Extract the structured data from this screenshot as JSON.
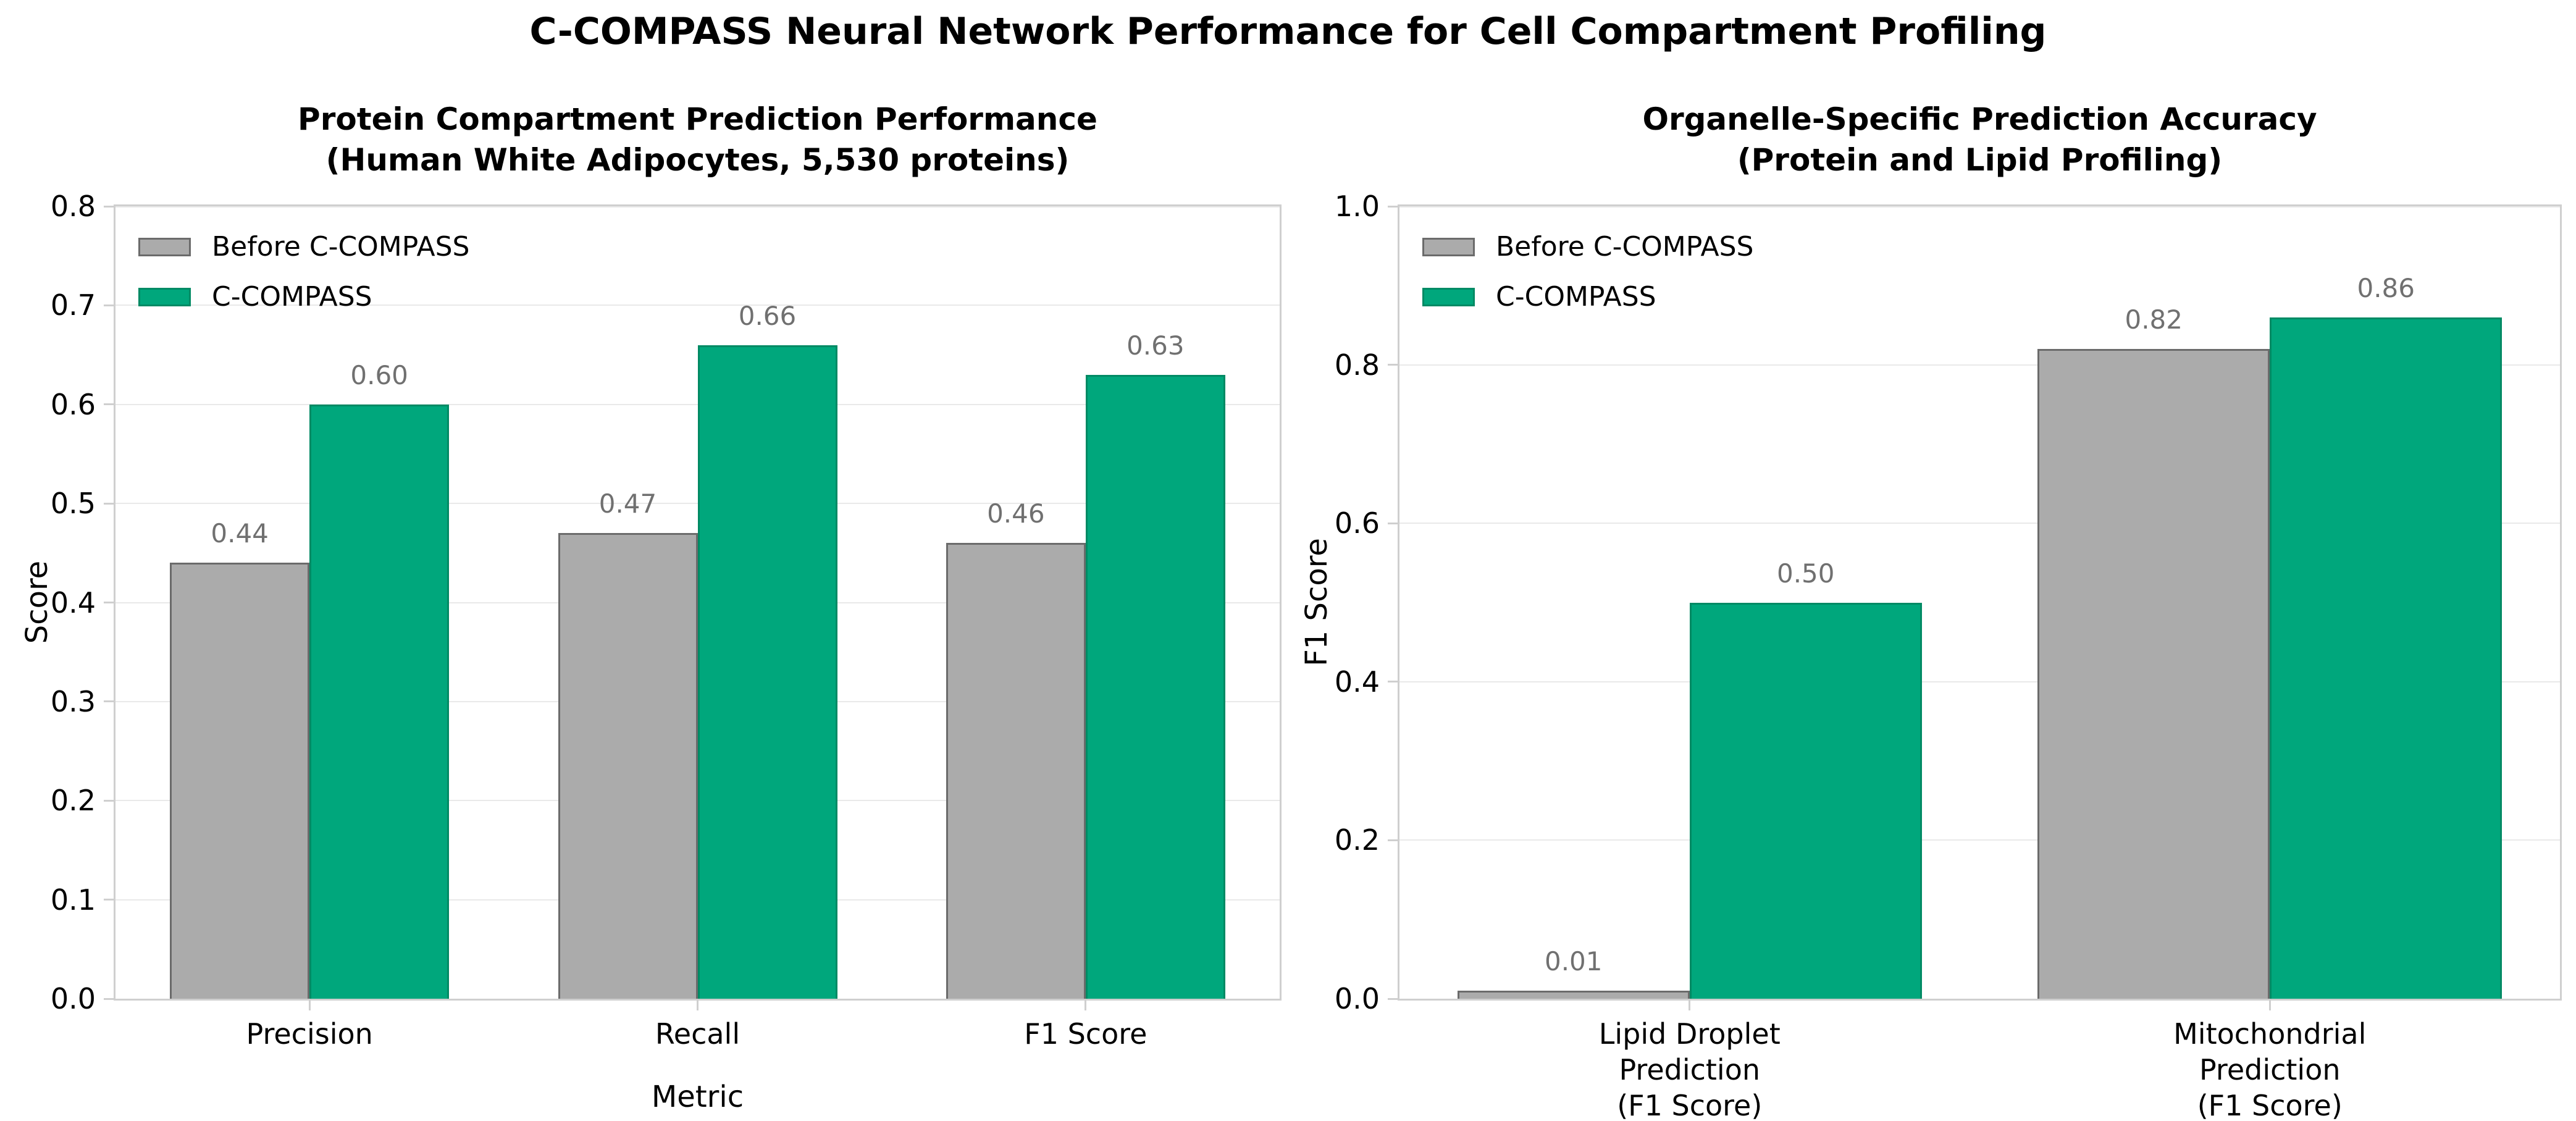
{
  "figure": {
    "suptitle": "C-COMPASS Neural Network Performance for Cell Compartment Profiling",
    "background": "#ffffff"
  },
  "colors": {
    "before_fill": "#ababab",
    "before_edge": "#6b6b6b",
    "ccompass_fill": "#00a77c",
    "ccompass_edge": "#008a64",
    "grid": "#e9e9e9",
    "spine": "#cfcfcf",
    "value_label": "#707070",
    "text": "#000000"
  },
  "legend": {
    "items": [
      {
        "label": "Before C-COMPASS",
        "series_key": "before"
      },
      {
        "label": "C-COMPASS",
        "series_key": "ccompass"
      }
    ],
    "position": "upper left",
    "frame": false
  },
  "chart_data": [
    {
      "id": "left-chart",
      "type": "bar",
      "title": "Protein Compartment Prediction Performance",
      "subtitle": "(Human White Adipocytes, 5,530 proteins)",
      "xlabel": "Metric",
      "ylabel": "Score",
      "ylim": [
        0.0,
        0.8
      ],
      "yticks": [
        "0.0",
        "0.1",
        "0.2",
        "0.3",
        "0.4",
        "0.5",
        "0.6",
        "0.7",
        "0.8"
      ],
      "grid": true,
      "legend_position": "upper left",
      "categories": [
        "Precision",
        "Recall",
        "F1 Score"
      ],
      "series": [
        {
          "name": "Before C-COMPASS",
          "key": "before",
          "values": [
            0.44,
            0.47,
            0.46
          ]
        },
        {
          "name": "C-COMPASS",
          "key": "ccompass",
          "values": [
            0.6,
            0.66,
            0.63
          ]
        }
      ],
      "value_labels": [
        [
          "0.44",
          "0.47",
          "0.46"
        ],
        [
          "0.60",
          "0.66",
          "0.63"
        ]
      ]
    },
    {
      "id": "right-chart",
      "type": "bar",
      "title": "Organelle-Specific Prediction Accuracy",
      "subtitle": "(Protein and Lipid Profiling)",
      "xlabel": "",
      "ylabel": "F1 Score",
      "ylim": [
        0.0,
        1.0
      ],
      "yticks": [
        "0.0",
        "0.2",
        "0.4",
        "0.6",
        "0.8",
        "1.0"
      ],
      "grid": true,
      "legend_position": "upper left",
      "categories": [
        "Lipid Droplet\nPrediction\n(F1 Score)",
        "Mitochondrial\nPrediction\n(F1 Score)"
      ],
      "series": [
        {
          "name": "Before C-COMPASS",
          "key": "before",
          "values": [
            0.01,
            0.82
          ]
        },
        {
          "name": "C-COMPASS",
          "key": "ccompass",
          "values": [
            0.5,
            0.86
          ]
        }
      ],
      "value_labels": [
        [
          "0.01",
          "0.82"
        ],
        [
          "0.50",
          "0.86"
        ]
      ]
    }
  ]
}
